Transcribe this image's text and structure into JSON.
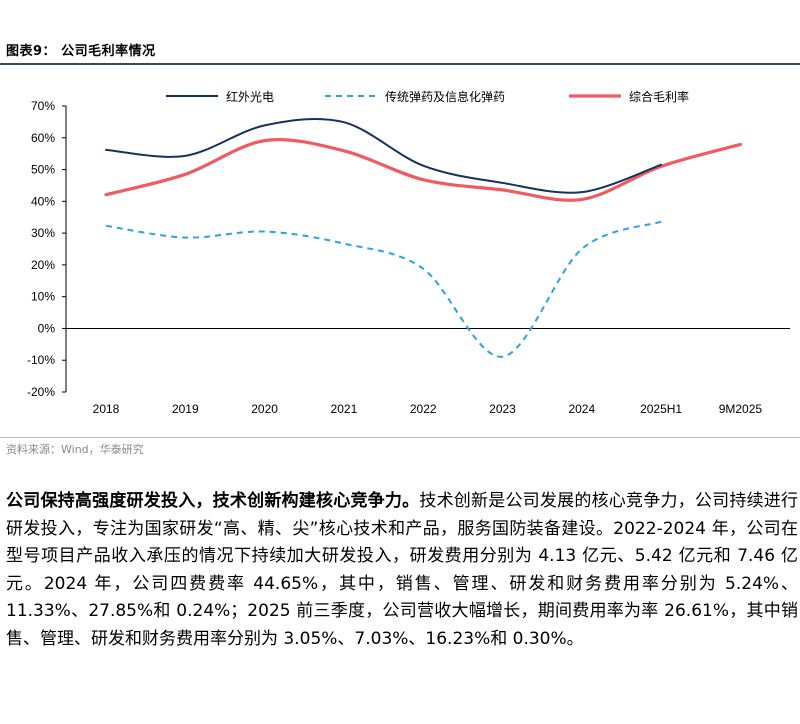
{
  "figure": {
    "title": "图表9：  公司毛利率情况",
    "source": "资料来源：Wind，华泰研究"
  },
  "chart_data": {
    "type": "line",
    "categories": [
      "2018",
      "2019",
      "2020",
      "2021",
      "2022",
      "2023",
      "2024",
      "2025H1",
      "9M2025"
    ],
    "ylim": [
      -20,
      70
    ],
    "yticks": [
      "70%",
      "60%",
      "50%",
      "40%",
      "30%",
      "20%",
      "10%",
      "0%",
      "-10%",
      "-20%"
    ],
    "ytick_values": [
      70,
      60,
      50,
      40,
      30,
      20,
      10,
      0,
      -10,
      -20
    ],
    "series": [
      {
        "name": "红外光电",
        "values": [
          56.2,
          54.3,
          63.9,
          64.9,
          51.2,
          45.8,
          42.9,
          51.5,
          null
        ],
        "color": "#13325e",
        "style": "solid"
      },
      {
        "name": "传统弹药及信息化弹药",
        "values": [
          32.3,
          28.6,
          30.5,
          26.7,
          18.8,
          -8.9,
          25.0,
          33.6,
          null
        ],
        "color": "#29a3e0",
        "style": "dashed"
      },
      {
        "name": "综合毛利率",
        "values": [
          42.1,
          48.5,
          59.1,
          55.9,
          46.8,
          43.6,
          40.6,
          51.0,
          57.9
        ],
        "color": "#f05a60",
        "style": "solid"
      }
    ]
  },
  "text": {
    "lead": "公司保持高强度研发投入，技术创新构建核心竞争力。",
    "body": "技术创新是公司发展的核心竞争力，公司持续进行研发投入，专注为国家研发“高、精、尖”核心技术和产品，服务国防装备建设。2022-2024 年，公司在型号项目产品收入承压的情况下持续加大研发投入，研发费用分别为 4.13 亿元、5.42 亿元和 7.46 亿元。2024 年，公司四费费率 44.65%，其中，销售、管理、研发和财务费用率分别为 5.24%、11.33%、27.85%和 0.24%；2025 前三季度，公司营收大幅增长，期间费用率为率 26.61%，其中销售、管理、研发和财务费用率分别为 3.05%、7.03%、16.23%和 0.30%。"
  }
}
